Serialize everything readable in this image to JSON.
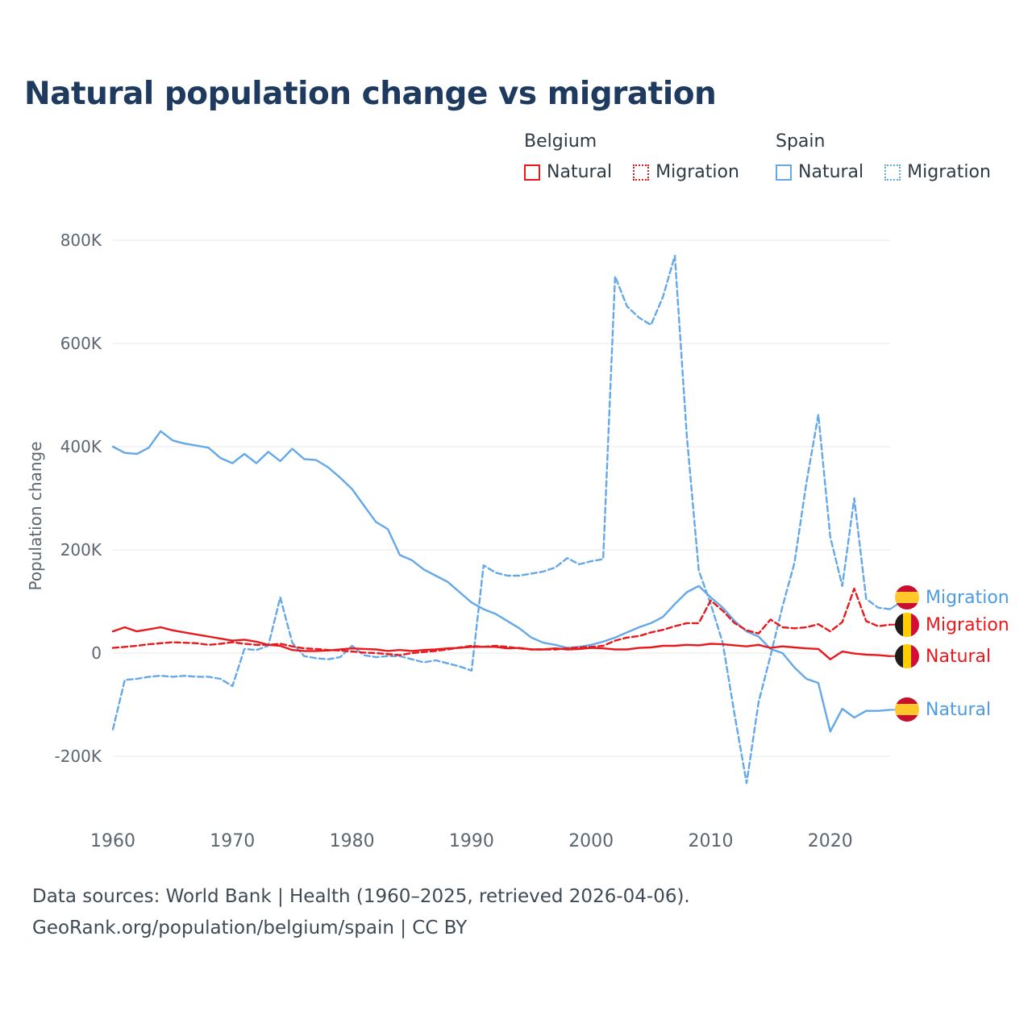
{
  "legend": {
    "belgium": {
      "label": "Belgium",
      "items": [
        {
          "label": "Natural",
          "style": "solid"
        },
        {
          "label": "Migration",
          "style": "dotted"
        }
      ]
    },
    "spain": {
      "label": "Spain",
      "items": [
        {
          "label": "Natural",
          "style": "solid"
        },
        {
          "label": "Migration",
          "style": "dotted"
        }
      ]
    }
  },
  "end_labels": [
    {
      "text": "Migration",
      "country": "Spain",
      "color": "blue"
    },
    {
      "text": "Migration",
      "country": "Belgium",
      "color": "red"
    },
    {
      "text": "Natural",
      "country": "Belgium",
      "color": "red"
    },
    {
      "text": "Natural",
      "country": "Spain",
      "color": "blue"
    }
  ],
  "footer": {
    "line1": "Data sources: World Bank | Health (1960–2025, retrieved 2026-04-06).",
    "line2": "GeoRank.org/population/belgium/spain | CC BY"
  },
  "colors": {
    "belgium": "#e8191d",
    "spain": "#64a8e8",
    "title": "#1e3a5e",
    "gridline": "#e8e8e8",
    "tick_text": "#5c6670"
  },
  "chart_data": {
    "type": "line",
    "title": "Natural population change vs migration",
    "xlabel": "",
    "ylabel": "Population change",
    "values_unit": "thousands of people",
    "xlim": [
      1960,
      2025
    ],
    "ylim": [
      -280,
      820
    ],
    "grid": "horizontal",
    "x_ticks": [
      1960,
      1970,
      1980,
      1990,
      2000,
      2010,
      2020
    ],
    "y_ticks": [
      800,
      600,
      400,
      200,
      0,
      -200
    ],
    "y_tick_labels": [
      "800K",
      "600K",
      "400K",
      "200K",
      "0",
      "-200K"
    ],
    "x": [
      1960,
      1961,
      1962,
      1963,
      1964,
      1965,
      1966,
      1967,
      1968,
      1969,
      1970,
      1971,
      1972,
      1973,
      1974,
      1975,
      1976,
      1977,
      1978,
      1979,
      1980,
      1981,
      1982,
      1983,
      1984,
      1985,
      1986,
      1987,
      1988,
      1989,
      1990,
      1991,
      1992,
      1993,
      1994,
      1995,
      1996,
      1997,
      1998,
      1999,
      2000,
      2001,
      2002,
      2003,
      2004,
      2005,
      2006,
      2007,
      2008,
      2009,
      2010,
      2011,
      2012,
      2013,
      2014,
      2015,
      2016,
      2017,
      2018,
      2019,
      2020,
      2021,
      2022,
      2023,
      2024,
      2025
    ],
    "series": [
      {
        "name": "Spain Natural",
        "color": "#64a8e8",
        "dash": "solid",
        "values": [
          400,
          388,
          386,
          398,
          430,
          412,
          406,
          402,
          398,
          378,
          368,
          386,
          368,
          390,
          372,
          396,
          376,
          374,
          360,
          340,
          318,
          286,
          254,
          240,
          190,
          180,
          162,
          150,
          138,
          118,
          98,
          85,
          76,
          62,
          48,
          30,
          20,
          16,
          10,
          12,
          16,
          22,
          30,
          40,
          50,
          58,
          70,
          95,
          118,
          130,
          108,
          88,
          62,
          42,
          32,
          8,
          0,
          -28,
          -50,
          -58,
          -152,
          -108,
          -125,
          -112,
          -112,
          -110
        ]
      },
      {
        "name": "Spain Migration",
        "color": "#64a8e8",
        "dash": "dashed",
        "values": [
          -148,
          -52,
          -50,
          -46,
          -44,
          -46,
          -44,
          -46,
          -46,
          -50,
          -64,
          8,
          6,
          14,
          108,
          20,
          -6,
          -10,
          -12,
          -8,
          14,
          -4,
          -8,
          -6,
          -6,
          -12,
          -18,
          -14,
          -20,
          -26,
          -34,
          170,
          156,
          150,
          150,
          154,
          158,
          166,
          184,
          172,
          178,
          182,
          730,
          672,
          650,
          636,
          690,
          770,
          420,
          160,
          95,
          20,
          -120,
          -252,
          -95,
          -5,
          90,
          175,
          330,
          462,
          225,
          130,
          300,
          105,
          88,
          85
        ]
      },
      {
        "name": "Belgium Natural",
        "color": "#e8191d",
        "dash": "solid",
        "values": [
          42,
          50,
          42,
          46,
          50,
          44,
          40,
          36,
          32,
          28,
          24,
          26,
          22,
          16,
          14,
          6,
          4,
          4,
          5,
          7,
          9,
          8,
          7,
          4,
          6,
          4,
          6,
          7,
          9,
          10,
          12,
          12,
          12,
          9,
          10,
          7,
          7,
          9,
          7,
          8,
          10,
          9,
          7,
          7,
          10,
          11,
          14,
          14,
          16,
          15,
          18,
          17,
          15,
          13,
          16,
          10,
          13,
          11,
          9,
          8,
          -12,
          3,
          -1,
          -3,
          -4,
          -6
        ]
      },
      {
        "name": "Belgium Migration",
        "color": "#e8191d",
        "dash": "dashed",
        "values": [
          10,
          12,
          14,
          17,
          19,
          21,
          20,
          19,
          16,
          18,
          21,
          18,
          16,
          16,
          18,
          13,
          9,
          8,
          6,
          5,
          3,
          1,
          0,
          -2,
          -4,
          0,
          2,
          4,
          7,
          11,
          14,
          12,
          14,
          12,
          9,
          7,
          7,
          7,
          9,
          11,
          12,
          14,
          24,
          30,
          33,
          40,
          45,
          52,
          58,
          58,
          102,
          82,
          58,
          44,
          38,
          65,
          50,
          48,
          50,
          56,
          42,
          60,
          125,
          62,
          52,
          55
        ]
      }
    ]
  }
}
